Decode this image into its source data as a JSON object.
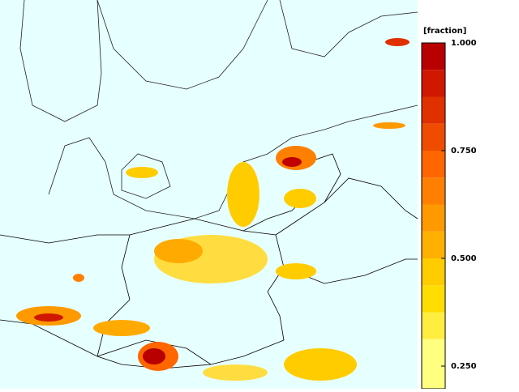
{
  "colorbar": {
    "title": "[fraction]",
    "levels": [
      0.1875,
      0.25,
      0.3125,
      0.375,
      0.4375,
      0.5,
      0.5625,
      0.625,
      0.6875,
      0.75,
      0.8125,
      0.875,
      0.9375,
      1
    ],
    "colors": [
      "#ffff80",
      "#ffff80",
      "#ffee40",
      "#ffdd00",
      "#ffcc00",
      "#ffb000",
      "#ff9900",
      "#ff8000",
      "#ff6600",
      "#f04c00",
      "#e03000",
      "#d01800",
      "#b80000"
    ],
    "ticks": [
      {
        "value": 1,
        "label": "1.000"
      },
      {
        "value": 0.75,
        "label": "0.750"
      },
      {
        "value": 0.5,
        "label": "0.500"
      },
      {
        "value": 0.25,
        "label": "0.250"
      }
    ]
  }
}
